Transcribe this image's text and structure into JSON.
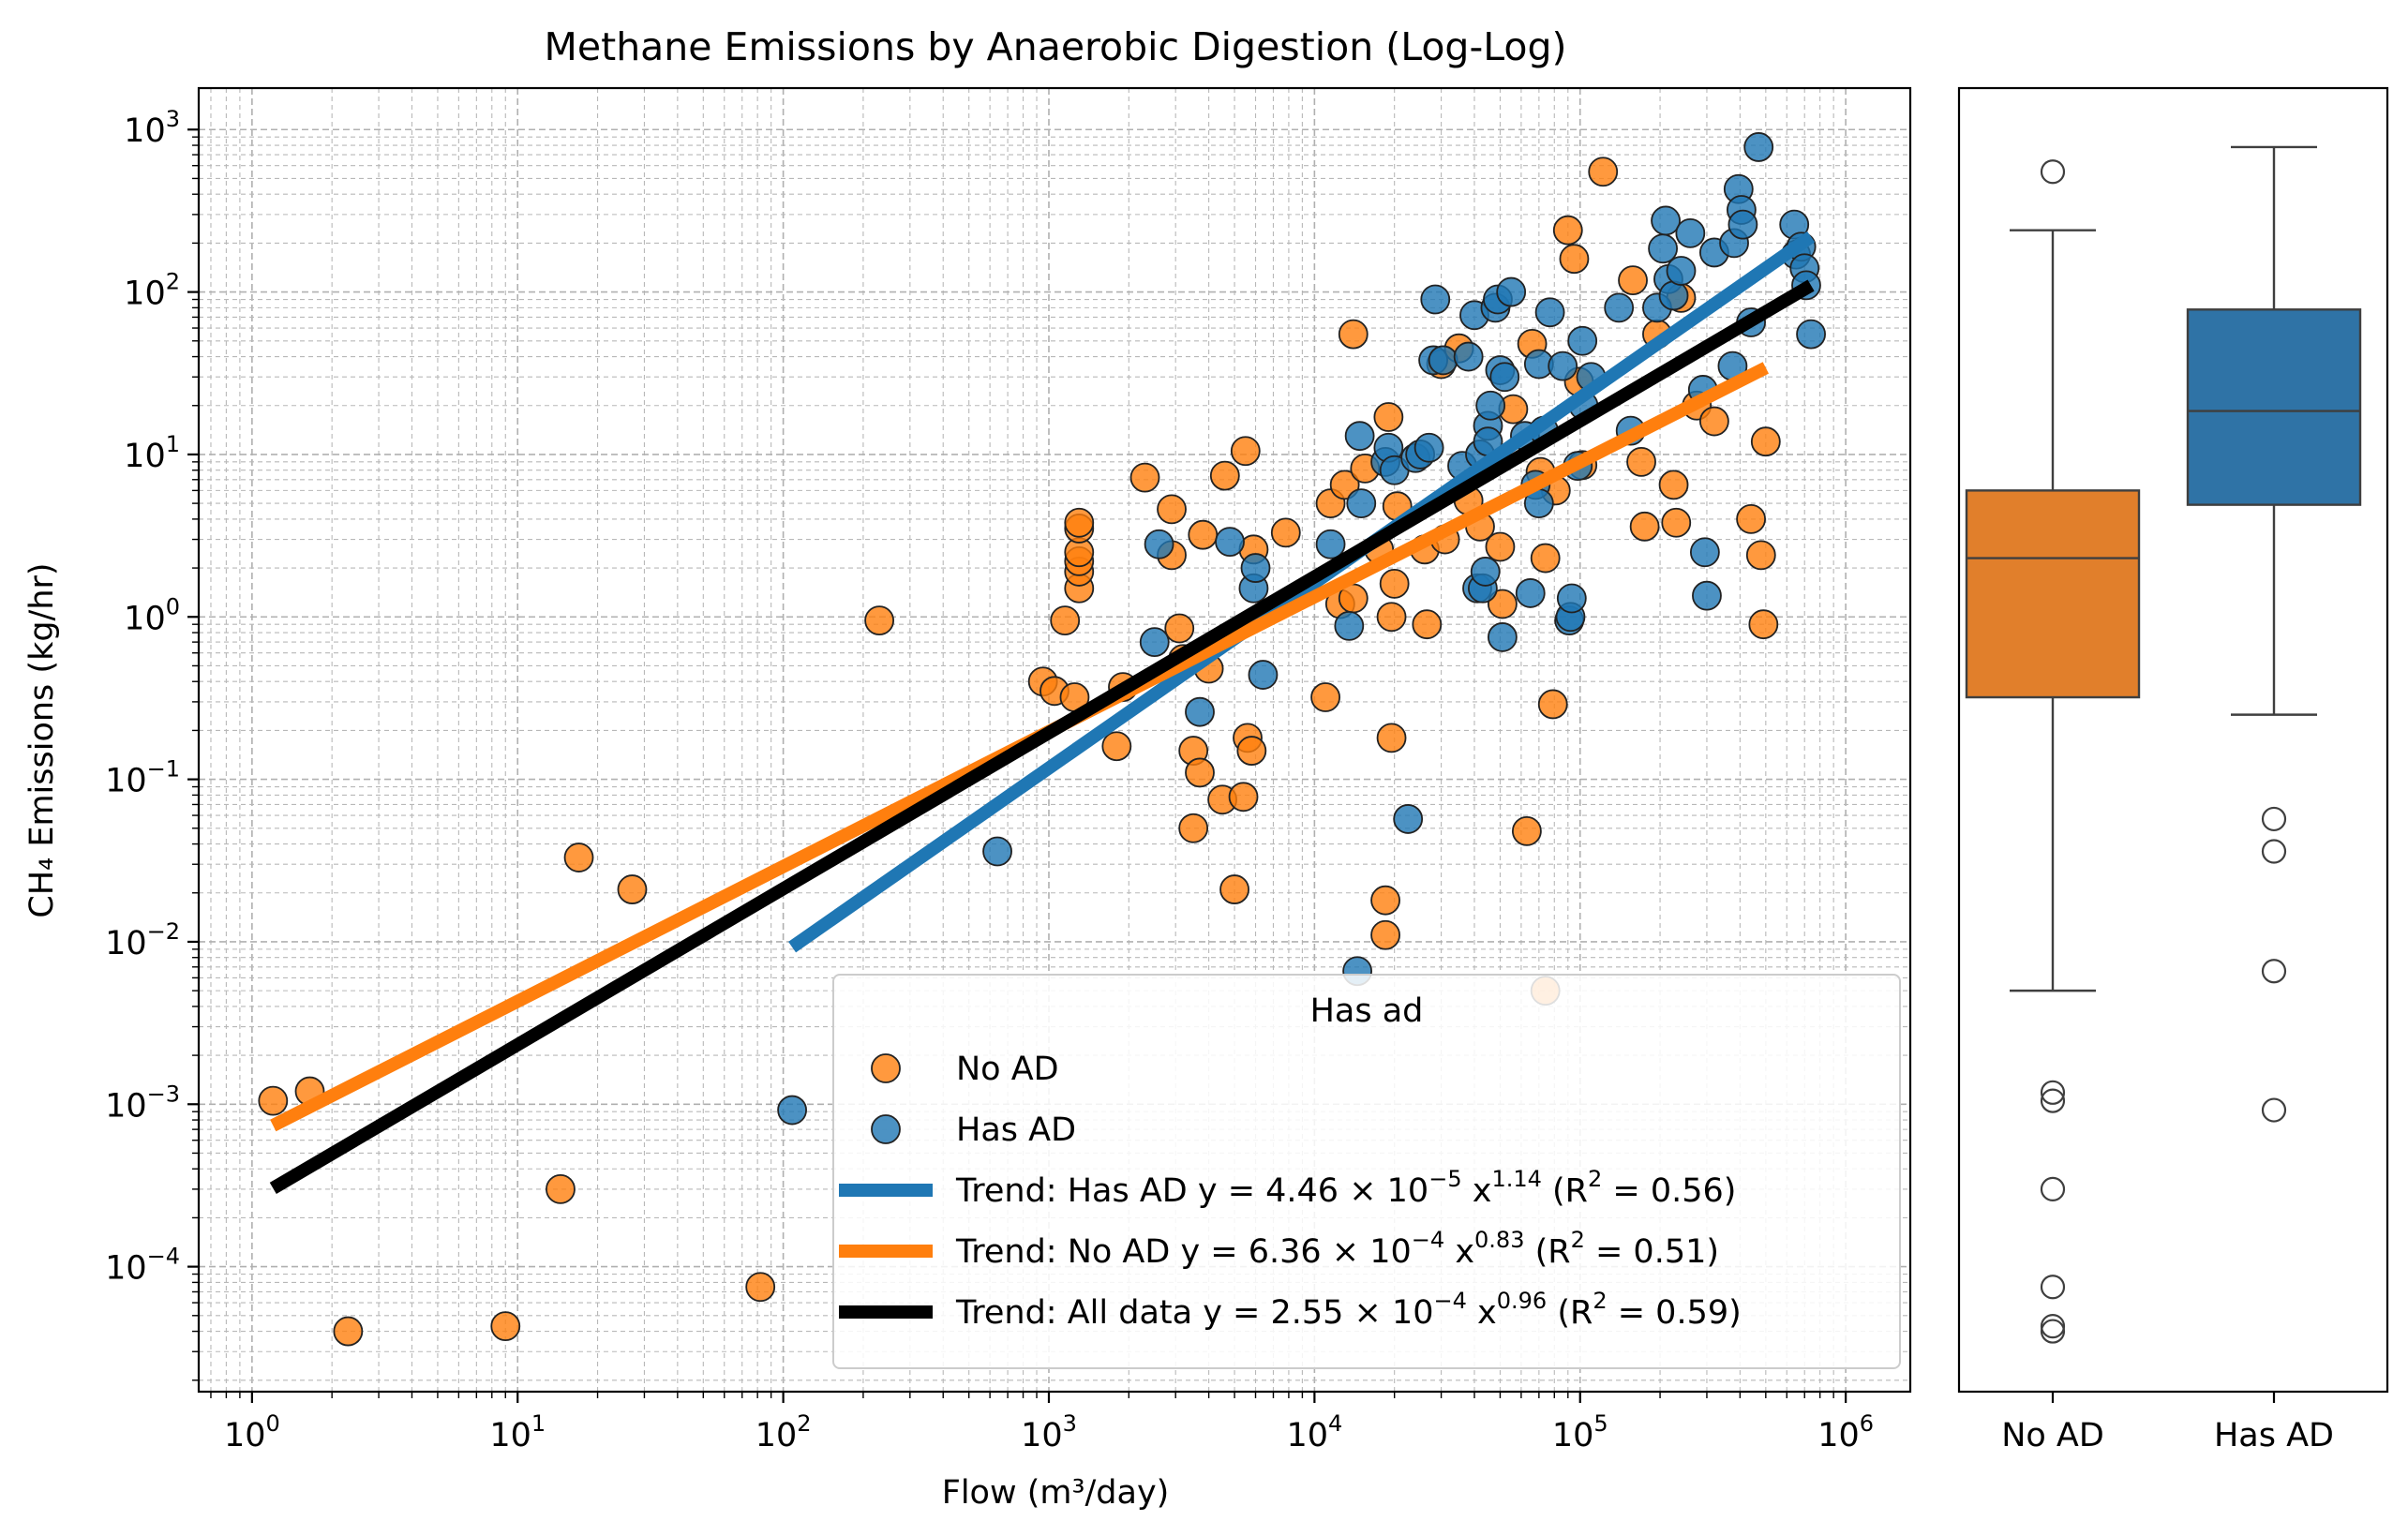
{
  "chart_data": [
    {
      "type": "scatter",
      "title": "Methane Emissions by Anaerobic Digestion (Log-Log)",
      "xlabel": "Flow (m³/day)",
      "ylabel": "CH₄ Emissions (kg/hr)",
      "xscale": "log",
      "yscale": "log",
      "xlim": [
        0.63,
        1750000.0
      ],
      "ylim": [
        1.7e-05,
        1800.0
      ],
      "grid": true,
      "xticks": [
        {
          "base": "10",
          "exp": "0"
        },
        {
          "base": "10",
          "exp": "1"
        },
        {
          "base": "10",
          "exp": "2"
        },
        {
          "base": "10",
          "exp": "3"
        },
        {
          "base": "10",
          "exp": "4"
        },
        {
          "base": "10",
          "exp": "5"
        },
        {
          "base": "10",
          "exp": "6"
        }
      ],
      "yticks": [
        {
          "base": "10",
          "exp": "−4"
        },
        {
          "base": "10",
          "exp": "−3"
        },
        {
          "base": "10",
          "exp": "−2"
        },
        {
          "base": "10",
          "exp": "−1"
        },
        {
          "base": "10",
          "exp": "0"
        },
        {
          "base": "10",
          "exp": "1"
        },
        {
          "base": "10",
          "exp": "2"
        },
        {
          "base": "10",
          "exp": "3"
        }
      ],
      "legend": {
        "title": "Has ad",
        "placement": "lower-right",
        "entries": [
          {
            "label": "No AD",
            "kind": "marker",
            "color": "#ff7f0e"
          },
          {
            "label": "Has AD",
            "kind": "marker",
            "color": "#1f77b4"
          },
          {
            "label": "Trend: Has AD",
            "kind": "line",
            "color": "#1f77b4",
            "eq_lhs": "y = 4.46 × 10",
            "eq_exp": "−5",
            "eq_x": " x",
            "eq_xexp": "1.14",
            "eq_r2": "(R",
            "eq_r2sup": "2",
            "eq_r2val": " = 0.56)"
          },
          {
            "label": "Trend: No AD",
            "kind": "line",
            "color": "#ff7f0e",
            "eq_lhs": "y = 6.36 × 10",
            "eq_exp": "−4",
            "eq_x": " x",
            "eq_xexp": "0.83",
            "eq_r2": "(R",
            "eq_r2sup": "2",
            "eq_r2val": " = 0.51)"
          },
          {
            "label": "Trend: All data",
            "kind": "line",
            "color": "#000000",
            "eq_lhs": "y = 2.55 × 10",
            "eq_exp": "−4",
            "eq_x": " x",
            "eq_xexp": "0.96",
            "eq_r2": "(R",
            "eq_r2sup": "2",
            "eq_r2val": " = 0.59)"
          }
        ]
      },
      "series": [
        {
          "name": "No AD",
          "color": "#ff7f0e",
          "points": [
            [
              1.2,
              0.00105
            ],
            [
              1.65,
              0.0012
            ],
            [
              2.3,
              4e-05
            ],
            [
              9,
              4.3e-05
            ],
            [
              14.5,
              0.0003
            ],
            [
              17,
              0.033
            ],
            [
              27,
              0.021
            ],
            [
              82,
              7.5e-05
            ],
            [
              230,
              0.95
            ],
            [
              950,
              0.4
            ],
            [
              1050,
              0.35
            ],
            [
              1150,
              0.95
            ],
            [
              1250,
              0.32
            ],
            [
              1300,
              1.5
            ],
            [
              1300,
              1.9
            ],
            [
              1300,
              2.2
            ],
            [
              1300,
              2.5
            ],
            [
              1300,
              3.5
            ],
            [
              1300,
              3.8
            ],
            [
              1800,
              0.16
            ],
            [
              1900,
              0.37
            ],
            [
              2300,
              7.2
            ],
            [
              2900,
              4.6
            ],
            [
              2900,
              2.4
            ],
            [
              3100,
              0.85
            ],
            [
              3200,
              0.55
            ],
            [
              3500,
              0.15
            ],
            [
              3500,
              0.05
            ],
            [
              3700,
              0.11
            ],
            [
              3800,
              3.2
            ],
            [
              4000,
              0.48
            ],
            [
              4500,
              0.075
            ],
            [
              4600,
              7.4
            ],
            [
              5000,
              0.021
            ],
            [
              5400,
              0.078
            ],
            [
              5500,
              10.5
            ],
            [
              5600,
              0.18
            ],
            [
              5800,
              0.15
            ],
            [
              5900,
              2.6
            ],
            [
              7800,
              3.3
            ],
            [
              11000,
              0.32
            ],
            [
              11500,
              5.0
            ],
            [
              12500,
              1.2
            ],
            [
              13000,
              6.5
            ],
            [
              14000,
              55
            ],
            [
              14000,
              1.3
            ],
            [
              15500,
              8.2
            ],
            [
              17500,
              2.6
            ],
            [
              18500,
              0.018
            ],
            [
              18500,
              0.011
            ],
            [
              19000,
              17
            ],
            [
              19500,
              0.18
            ],
            [
              19500,
              1.0
            ],
            [
              20000,
              1.6
            ],
            [
              20500,
              4.8
            ],
            [
              26000,
              2.6
            ],
            [
              26500,
              0.9
            ],
            [
              30000,
              36
            ],
            [
              31000,
              3.0
            ],
            [
              35000,
              45
            ],
            [
              38000,
              5.2
            ],
            [
              42000,
              3.6
            ],
            [
              50000,
              2.7
            ],
            [
              51000,
              1.2
            ],
            [
              56000,
              19
            ],
            [
              63000,
              0.048
            ],
            [
              66000,
              48
            ],
            [
              71000,
              7.8
            ],
            [
              74000,
              0.005
            ],
            [
              74000,
              2.3
            ],
            [
              79000,
              0.29
            ],
            [
              81000,
              6.0
            ],
            [
              90000,
              240
            ],
            [
              95000,
              160
            ],
            [
              99000,
              28
            ],
            [
              102000,
              8.6
            ],
            [
              122000,
              550
            ],
            [
              158000,
              118
            ],
            [
              170000,
              9.0
            ],
            [
              175000,
              3.6
            ],
            [
              195000,
              55
            ],
            [
              225000,
              6.5
            ],
            [
              230000,
              3.8
            ],
            [
              240000,
              92
            ],
            [
              275000,
              20
            ],
            [
              320000,
              16
            ],
            [
              440000,
              4.0
            ],
            [
              480000,
              2.4
            ],
            [
              490000,
              0.9
            ],
            [
              500000,
              12
            ]
          ]
        },
        {
          "name": "Has AD",
          "color": "#1f77b4",
          "points": [
            [
              108,
              0.00092
            ],
            [
              640,
              0.036
            ],
            [
              2500,
              0.7
            ],
            [
              2600,
              2.8
            ],
            [
              3700,
              0.26
            ],
            [
              4800,
              2.9
            ],
            [
              5900,
              1.5
            ],
            [
              6000,
              2.0
            ],
            [
              6400,
              0.44
            ],
            [
              11500,
              2.8
            ],
            [
              13500,
              0.88
            ],
            [
              14500,
              0.0066
            ],
            [
              14800,
              13
            ],
            [
              15000,
              5.0
            ],
            [
              18500,
              9.0
            ],
            [
              19000,
              11
            ],
            [
              20000,
              8.0
            ],
            [
              22500,
              0.057
            ],
            [
              24000,
              9.5
            ],
            [
              25000,
              10
            ],
            [
              27000,
              11
            ],
            [
              28000,
              38
            ],
            [
              28500,
              90
            ],
            [
              30500,
              38
            ],
            [
              36000,
              8.5
            ],
            [
              38000,
              40
            ],
            [
              40000,
              72
            ],
            [
              41000,
              1.5
            ],
            [
              42000,
              10
            ],
            [
              43000,
              1.5
            ],
            [
              44000,
              1.9
            ],
            [
              45000,
              15
            ],
            [
              45000,
              12
            ],
            [
              46000,
              20
            ],
            [
              48000,
              80
            ],
            [
              49000,
              90
            ],
            [
              50000,
              33
            ],
            [
              51000,
              0.75
            ],
            [
              52000,
              30
            ],
            [
              55000,
              100
            ],
            [
              62000,
              13
            ],
            [
              65000,
              1.4
            ],
            [
              68000,
              6.5
            ],
            [
              70000,
              5.0
            ],
            [
              70000,
              36
            ],
            [
              73000,
              14
            ],
            [
              77000,
              75
            ],
            [
              86000,
              35
            ],
            [
              91000,
              0.95
            ],
            [
              92000,
              1.0
            ],
            [
              93000,
              1.3
            ],
            [
              98000,
              8.5
            ],
            [
              102000,
              50
            ],
            [
              103000,
              20
            ],
            [
              110000,
              30
            ],
            [
              140000,
              80
            ],
            [
              155000,
              14
            ],
            [
              195000,
              80
            ],
            [
              205000,
              185
            ],
            [
              210000,
              275
            ],
            [
              215000,
              120
            ],
            [
              225000,
              95
            ],
            [
              240000,
              135
            ],
            [
              260000,
              230
            ],
            [
              290000,
              25
            ],
            [
              295000,
              2.5
            ],
            [
              300000,
              1.35
            ],
            [
              320000,
              175
            ],
            [
              375000,
              35
            ],
            [
              380000,
              200
            ],
            [
              395000,
              430
            ],
            [
              405000,
              320
            ],
            [
              410000,
              260
            ],
            [
              440000,
              65
            ],
            [
              470000,
              780
            ],
            [
              640000,
              260
            ],
            [
              650000,
              170
            ],
            [
              680000,
              190
            ],
            [
              700000,
              140
            ],
            [
              710000,
              110
            ],
            [
              740000,
              55
            ]
          ]
        }
      ],
      "trends": [
        {
          "name": "Trend: Has AD",
          "color": "#1f77b4",
          "a": 4.46e-05,
          "b": 1.14,
          "x_range": [
            108,
            740000
          ]
        },
        {
          "name": "Trend: No AD",
          "color": "#ff7f0e",
          "a": 0.000636,
          "b": 0.83,
          "x_range": [
            1.2,
            500000
          ]
        },
        {
          "name": "Trend: All data",
          "color": "#000000",
          "a": 0.000255,
          "b": 0.96,
          "x_range": [
            1.2,
            740000
          ]
        }
      ]
    },
    {
      "type": "box",
      "categories": [
        "No AD",
        "Has AD"
      ],
      "yscale": "log",
      "shared_y_with": "scatter",
      "y_ticks_shown": false,
      "boxes": [
        {
          "name": "No AD",
          "color": "#e17f2b",
          "q1": 0.32,
          "median": 2.3,
          "q3": 6.0,
          "whisker_low": 0.005,
          "whisker_high": 240,
          "outliers": [
            0.00118,
            0.00105,
            0.0003,
            7.5e-05,
            4.3e-05,
            4e-05,
            550
          ]
        },
        {
          "name": "Has AD",
          "color": "#2f73a6",
          "q1": 4.9,
          "median": 18.5,
          "q3": 78,
          "whisker_low": 0.25,
          "whisker_high": 780,
          "outliers": [
            0.057,
            0.036,
            0.0066,
            0.00092
          ]
        }
      ]
    }
  ]
}
